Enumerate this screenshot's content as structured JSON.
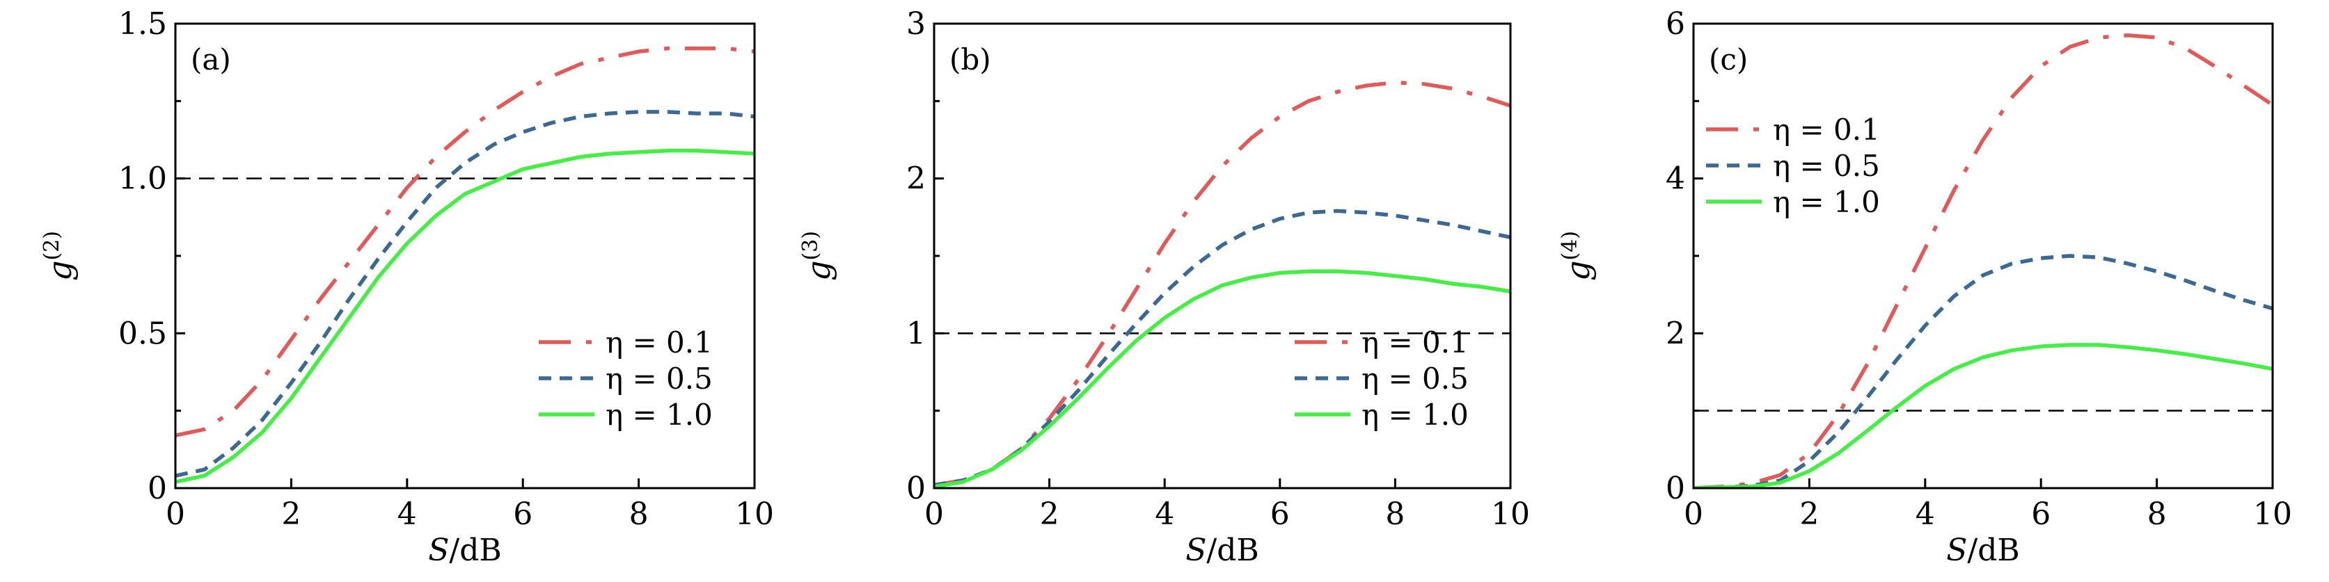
{
  "colors": {
    "eta_0.1": "#e05a5a",
    "eta_0.5": "#3b6994",
    "eta_1.0": "#44ee44",
    "reference": "#000000"
  },
  "chart_data": [
    {
      "type": "line",
      "panel_label": "(a)",
      "xlabel_italic": "S",
      "xlabel_rest": "/dB",
      "ylabel_base": "g",
      "ylabel_sup": "(2)",
      "xlim": [
        0,
        10
      ],
      "ylim": [
        0,
        1.5
      ],
      "xticks": [
        0,
        2,
        4,
        6,
        8,
        10
      ],
      "xtick_labels": [
        "0",
        "2",
        "4",
        "6",
        "8",
        "10"
      ],
      "yticks": [
        0,
        0.5,
        1.0,
        1.5
      ],
      "ytick_labels": [
        "0",
        "0.5",
        "1.0",
        "1.5"
      ],
      "yminor_step": 0.25,
      "reference_line": 1.0,
      "legend_placement": "bottom-right",
      "x": [
        0,
        0.5,
        1,
        1.5,
        2,
        2.5,
        3,
        3.5,
        4,
        4.5,
        5,
        5.5,
        6,
        6.5,
        7,
        7.5,
        8,
        8.5,
        9,
        9.5,
        10
      ],
      "series": [
        {
          "name": "η = 0.1",
          "style": "dashdot",
          "color_key": "eta_0.1",
          "values": [
            0.17,
            0.19,
            0.25,
            0.35,
            0.48,
            0.61,
            0.73,
            0.85,
            0.97,
            1.07,
            1.15,
            1.22,
            1.28,
            1.33,
            1.37,
            1.39,
            1.41,
            1.42,
            1.42,
            1.42,
            1.41
          ]
        },
        {
          "name": "η = 0.5",
          "style": "dashed",
          "color_key": "eta_0.5",
          "values": [
            0.04,
            0.06,
            0.13,
            0.22,
            0.34,
            0.47,
            0.61,
            0.74,
            0.86,
            0.97,
            1.05,
            1.11,
            1.15,
            1.18,
            1.2,
            1.21,
            1.215,
            1.215,
            1.21,
            1.21,
            1.2
          ]
        },
        {
          "name": "η = 1.0",
          "style": "solid",
          "color_key": "eta_1.0",
          "values": [
            0.02,
            0.04,
            0.1,
            0.18,
            0.29,
            0.42,
            0.55,
            0.68,
            0.79,
            0.88,
            0.95,
            0.99,
            1.03,
            1.05,
            1.07,
            1.08,
            1.085,
            1.09,
            1.09,
            1.085,
            1.08
          ]
        }
      ]
    },
    {
      "type": "line",
      "panel_label": "(b)",
      "xlabel_italic": "S",
      "xlabel_rest": "/dB",
      "ylabel_base": "g",
      "ylabel_sup": "(3)",
      "xlim": [
        0,
        10
      ],
      "ylim": [
        0,
        3
      ],
      "xticks": [
        0,
        2,
        4,
        6,
        8,
        10
      ],
      "xtick_labels": [
        "0",
        "2",
        "4",
        "6",
        "8",
        "10"
      ],
      "yticks": [
        0,
        1,
        2,
        3
      ],
      "ytick_labels": [
        "0",
        "1",
        "2",
        "3"
      ],
      "yminor_step": 0.5,
      "reference_line": 1,
      "legend_placement": "bottom-right",
      "x": [
        0,
        0.5,
        1,
        1.5,
        2,
        2.5,
        3,
        3.5,
        4,
        4.5,
        5,
        5.5,
        6,
        6.5,
        7,
        7.5,
        8,
        8.5,
        9,
        9.5,
        10
      ],
      "series": [
        {
          "name": "η = 0.1",
          "style": "dashdot",
          "color_key": "eta_0.1",
          "values": [
            0.02,
            0.05,
            0.12,
            0.25,
            0.45,
            0.7,
            0.98,
            1.28,
            1.58,
            1.85,
            2.08,
            2.26,
            2.4,
            2.5,
            2.56,
            2.6,
            2.62,
            2.61,
            2.58,
            2.53,
            2.47
          ]
        },
        {
          "name": "η = 0.5",
          "style": "dashed",
          "color_key": "eta_0.5",
          "values": [
            0.02,
            0.05,
            0.12,
            0.25,
            0.43,
            0.63,
            0.85,
            1.06,
            1.26,
            1.43,
            1.57,
            1.67,
            1.74,
            1.78,
            1.79,
            1.78,
            1.76,
            1.73,
            1.7,
            1.66,
            1.62
          ]
        },
        {
          "name": "η = 1.0",
          "style": "solid",
          "color_key": "eta_1.0",
          "values": [
            0.01,
            0.04,
            0.12,
            0.24,
            0.4,
            0.58,
            0.77,
            0.95,
            1.1,
            1.22,
            1.31,
            1.36,
            1.39,
            1.4,
            1.4,
            1.39,
            1.37,
            1.35,
            1.32,
            1.3,
            1.27
          ]
        }
      ]
    },
    {
      "type": "line",
      "panel_label": "(c)",
      "xlabel_italic": "S",
      "xlabel_rest": "/dB",
      "ylabel_base": "g",
      "ylabel_sup": "(4)",
      "xlim": [
        0,
        10
      ],
      "ylim": [
        0,
        6
      ],
      "xticks": [
        0,
        2,
        4,
        6,
        8,
        10
      ],
      "xtick_labels": [
        "0",
        "2",
        "4",
        "6",
        "8",
        "10"
      ],
      "yticks": [
        0,
        2,
        4,
        6
      ],
      "ytick_labels": [
        "0",
        "2",
        "4",
        "6"
      ],
      "yminor_step": 1,
      "reference_line": 1,
      "legend_placement": "top-left",
      "x": [
        0,
        0.5,
        1,
        1.5,
        2,
        2.5,
        3,
        3.5,
        4,
        4.5,
        5,
        5.5,
        6,
        6.5,
        7,
        7.5,
        8,
        8.5,
        9,
        9.5,
        10
      ],
      "series": [
        {
          "name": "η = 0.1",
          "style": "dashdot",
          "color_key": "eta_0.1",
          "values": [
            0,
            0.02,
            0.06,
            0.17,
            0.45,
            0.95,
            1.6,
            2.35,
            3.1,
            3.85,
            4.5,
            5.05,
            5.45,
            5.7,
            5.82,
            5.85,
            5.82,
            5.68,
            5.45,
            5.2,
            4.95
          ]
        },
        {
          "name": "η = 0.5",
          "style": "dashed",
          "color_key": "eta_0.5",
          "values": [
            0,
            0.01,
            0.03,
            0.1,
            0.35,
            0.72,
            1.17,
            1.65,
            2.1,
            2.48,
            2.75,
            2.9,
            2.97,
            3.0,
            2.98,
            2.9,
            2.8,
            2.68,
            2.55,
            2.43,
            2.32
          ]
        },
        {
          "name": "η = 1.0",
          "style": "solid",
          "color_key": "eta_1.0",
          "values": [
            0,
            0.01,
            0.02,
            0.07,
            0.22,
            0.45,
            0.74,
            1.04,
            1.32,
            1.54,
            1.69,
            1.78,
            1.83,
            1.85,
            1.85,
            1.82,
            1.78,
            1.73,
            1.67,
            1.61,
            1.54
          ]
        }
      ]
    }
  ]
}
